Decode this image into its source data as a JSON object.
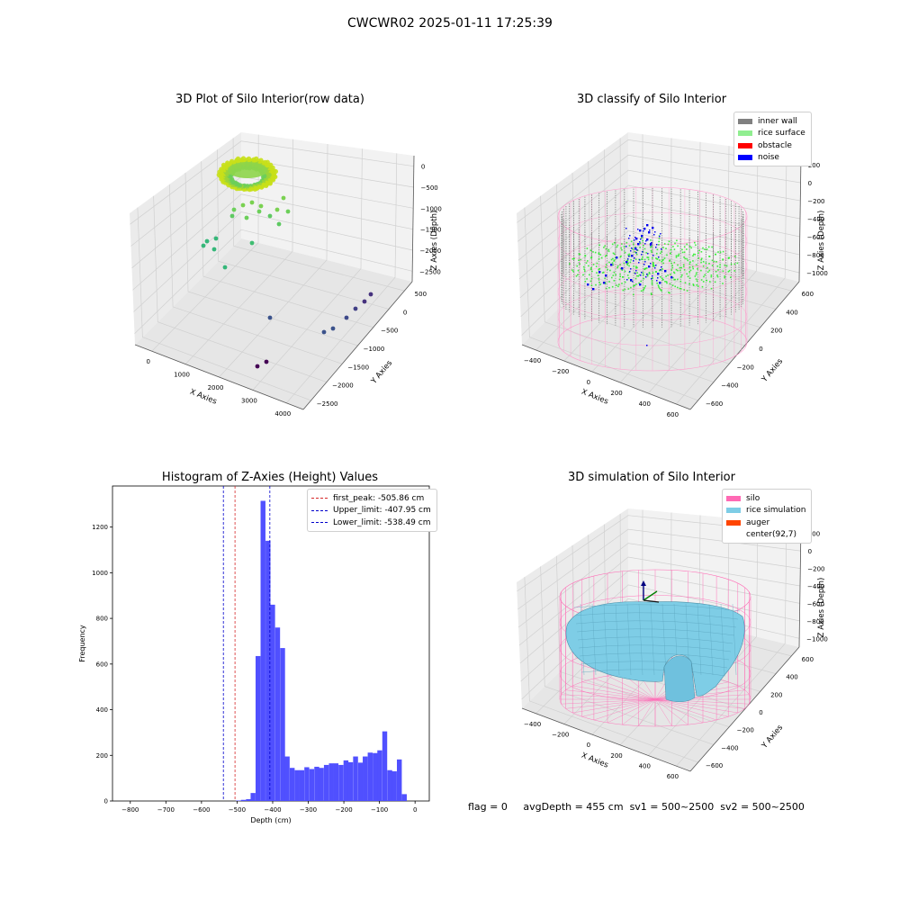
{
  "figure_title": "CWCWR02 2025-01-11 17:25:39",
  "footer": {
    "flag": "flag = 0",
    "avg_depth": "avgDepth = 455 cm",
    "sv1": "sv1 = 500~2500",
    "sv2": "sv2 = 500~2500"
  },
  "colors": {
    "inner_wall": "#808080",
    "rice_surface": "#90ee90",
    "obstacle": "#ff0000",
    "noise": "#0000ff",
    "silo": "#ff69b4",
    "rice_simulation": "#7ecde6",
    "auger": "#ff4500",
    "hist_bar": "#4d4dff",
    "first_peak": "#d62728",
    "limit_line": "#0000cc"
  },
  "chart_data": [
    {
      "type": "scatter",
      "title": "3D Plot of Silo Interior(row data)",
      "xlabel": "X Axies",
      "ylabel": "Y Axies",
      "zlabel": "Z Axies (Depth)",
      "x_ticks": [
        "0",
        "1000",
        "2000",
        "3000",
        "4000"
      ],
      "y_ticks": [
        "500",
        "0",
        "−500",
        "−1000",
        "−1500",
        "−2000",
        "−2500"
      ],
      "z_ticks": [
        "0",
        "−500",
        "−1000",
        "−1500",
        "−2000",
        "−2500"
      ]
    },
    {
      "type": "scatter",
      "title": "3D classify of Silo Interior",
      "xlabel": "X Axies",
      "ylabel": "Y Axies",
      "zlabel": "Z Axies (Depth)",
      "x_ticks": [
        "−400",
        "−200",
        "0",
        "200",
        "400",
        "600"
      ],
      "y_ticks": [
        "600",
        "400",
        "200",
        "0",
        "−200",
        "−400",
        "−600"
      ],
      "z_ticks": [
        "200",
        "0",
        "−200",
        "−400",
        "−600",
        "−800",
        "−1000"
      ],
      "legend": [
        "inner wall",
        "rice surface",
        "obstacle",
        "noise"
      ],
      "legend_position": "top-right"
    },
    {
      "type": "bar",
      "title": "Histogram of Z-Axies (Height) Values",
      "xlabel": "Depth (cm)",
      "ylabel": "Frequency",
      "xlim": [
        -850,
        40
      ],
      "ylim": [
        0,
        1380
      ],
      "x_ticks": [
        "−800",
        "−700",
        "−600",
        "−500",
        "−400",
        "−300",
        "−200",
        "−100",
        "0"
      ],
      "y_ticks": [
        "0",
        "200",
        "400",
        "600",
        "800",
        "1000",
        "1200"
      ],
      "bin_width": 13.7,
      "bins": [
        {
          "x": -583,
          "count": 2
        },
        {
          "x": -569,
          "count": 5
        },
        {
          "x": -555,
          "count": 8
        },
        {
          "x": -542,
          "count": 35
        },
        {
          "x": -528,
          "count": 635
        },
        {
          "x": -514,
          "count": 1315
        },
        {
          "x": -500,
          "count": 1140
        },
        {
          "x": -487,
          "count": 860
        },
        {
          "x": -473,
          "count": 760
        },
        {
          "x": -459,
          "count": 670
        },
        {
          "x": -446,
          "count": 195
        },
        {
          "x": -432,
          "count": 145
        },
        {
          "x": -418,
          "count": 135
        },
        {
          "x": -405,
          "count": 135
        },
        {
          "x": -391,
          "count": 148
        },
        {
          "x": -377,
          "count": 140
        },
        {
          "x": -363,
          "count": 150
        },
        {
          "x": -350,
          "count": 145
        },
        {
          "x": -336,
          "count": 158
        },
        {
          "x": -322,
          "count": 165
        },
        {
          "x": -309,
          "count": 165
        },
        {
          "x": -295,
          "count": 158
        },
        {
          "x": -281,
          "count": 178
        },
        {
          "x": -268,
          "count": 170
        },
        {
          "x": -254,
          "count": 195
        },
        {
          "x": -240,
          "count": 168
        },
        {
          "x": -227,
          "count": 195
        },
        {
          "x": -213,
          "count": 212
        },
        {
          "x": -199,
          "count": 210
        },
        {
          "x": -186,
          "count": 222
        },
        {
          "x": -172,
          "count": 305
        },
        {
          "x": -158,
          "count": 135
        },
        {
          "x": -145,
          "count": 130
        },
        {
          "x": -131,
          "count": 182
        },
        {
          "x": -117,
          "count": 30
        }
      ],
      "bin_x_offset": 80,
      "lines": [
        {
          "label": "first_peak: -505.86 cm",
          "x": -505.86,
          "style": "dashed",
          "color": "#d62728"
        },
        {
          "label": "Upper_limit: -407.95 cm",
          "x": -407.95,
          "style": "dashed",
          "color": "#0000cc"
        },
        {
          "label": "Lower_limit: -538.49 cm",
          "x": -538.49,
          "style": "dashed",
          "color": "#0000cc"
        }
      ],
      "legend_position": "top-right"
    },
    {
      "type": "area",
      "title": "3D simulation of Silo Interior",
      "xlabel": "X Axies",
      "ylabel": "Y Axies",
      "zlabel": "Z Axies (Depth)",
      "x_ticks": [
        "−400",
        "−200",
        "0",
        "200",
        "400",
        "600"
      ],
      "y_ticks": [
        "600",
        "400",
        "200",
        "0",
        "−200",
        "−400",
        "−600"
      ],
      "z_ticks": [
        "200",
        "0",
        "−200",
        "−400",
        "−600",
        "−800",
        "−1000"
      ],
      "legend": [
        "silo",
        "rice simulation",
        "auger",
        "center(92,7)"
      ],
      "legend_position": "top-right"
    }
  ]
}
